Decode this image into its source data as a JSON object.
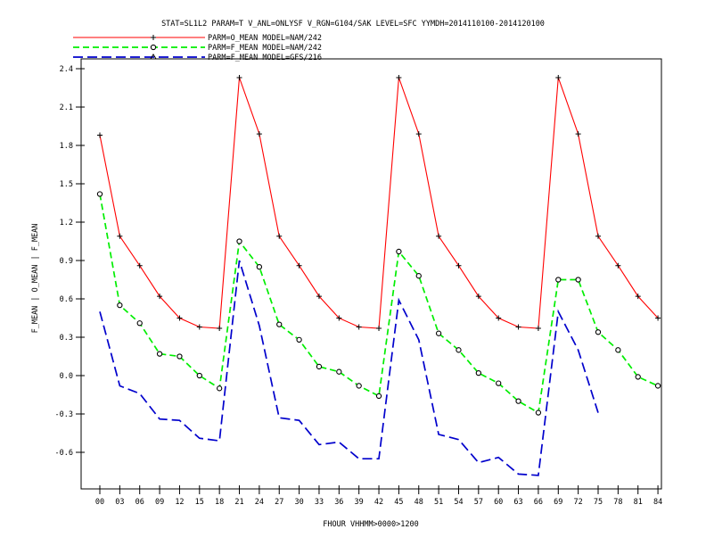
{
  "chart_data": {
    "type": "line",
    "title": "STAT=SL1L2 PARAM=T V_ANL=ONLYSF V_RGN=G104/SAK LEVEL=SFC YYMDH=2014110100-2014120100",
    "xlabel": "FHOUR VHHMM>0000>1200",
    "ylabel": "F_MEAN | O_MEAN | F_MEAN",
    "x": [
      "00",
      "03",
      "06",
      "09",
      "12",
      "15",
      "18",
      "21",
      "24",
      "27",
      "30",
      "33",
      "36",
      "39",
      "42",
      "45",
      "48",
      "51",
      "54",
      "57",
      "60",
      "63",
      "66",
      "69",
      "72",
      "75",
      "78",
      "81",
      "84"
    ],
    "yticks": [
      "2.4",
      "2.1",
      "1.8",
      "1.5",
      "1.2",
      "0.9",
      "0.6",
      "0.3",
      "0.0",
      "-0.3",
      "-0.6"
    ],
    "ylim": [
      -0.9,
      2.45
    ],
    "series": [
      {
        "name": "PARM=O_MEAN MODEL=NAM/242",
        "color": "#ff0000",
        "dash": "solid",
        "marker": "plus",
        "values": [
          1.88,
          1.09,
          0.86,
          0.62,
          0.45,
          0.38,
          0.37,
          2.33,
          1.89,
          1.09,
          0.86,
          0.62,
          0.45,
          0.38,
          0.37,
          2.33,
          1.89,
          1.09,
          0.86,
          0.62,
          0.45,
          0.38,
          0.37,
          2.33,
          1.89,
          1.09,
          0.86,
          0.62,
          0.45
        ]
      },
      {
        "name": "PARM=F_MEAN MODEL=NAM/242",
        "color": "#00ee00",
        "dash": "dashed",
        "marker": "diamond",
        "values": [
          1.42,
          0.55,
          0.41,
          0.17,
          0.15,
          0.0,
          -0.1,
          1.05,
          0.85,
          0.4,
          0.28,
          0.07,
          0.03,
          -0.08,
          -0.16,
          0.97,
          0.78,
          0.33,
          0.2,
          0.02,
          -0.06,
          -0.2,
          -0.29,
          0.75,
          0.75,
          0.34,
          0.2,
          -0.01,
          -0.08
        ]
      },
      {
        "name": "PARM=F_MEAN MODEL=GFS/216",
        "color": "#0000cc",
        "dash": "longdash",
        "marker": "triangle",
        "values": [
          0.5,
          -0.08,
          -0.14,
          -0.34,
          -0.35,
          -0.49,
          -0.51,
          0.9,
          0.39,
          -0.33,
          -0.35,
          -0.54,
          -0.52,
          -0.65,
          -0.65,
          0.59,
          0.28,
          -0.46,
          -0.5,
          -0.68,
          -0.64,
          -0.77,
          -0.78,
          0.5,
          0.2,
          -0.29,
          null,
          null,
          null
        ]
      }
    ],
    "grid": false,
    "legend": "top-left"
  }
}
